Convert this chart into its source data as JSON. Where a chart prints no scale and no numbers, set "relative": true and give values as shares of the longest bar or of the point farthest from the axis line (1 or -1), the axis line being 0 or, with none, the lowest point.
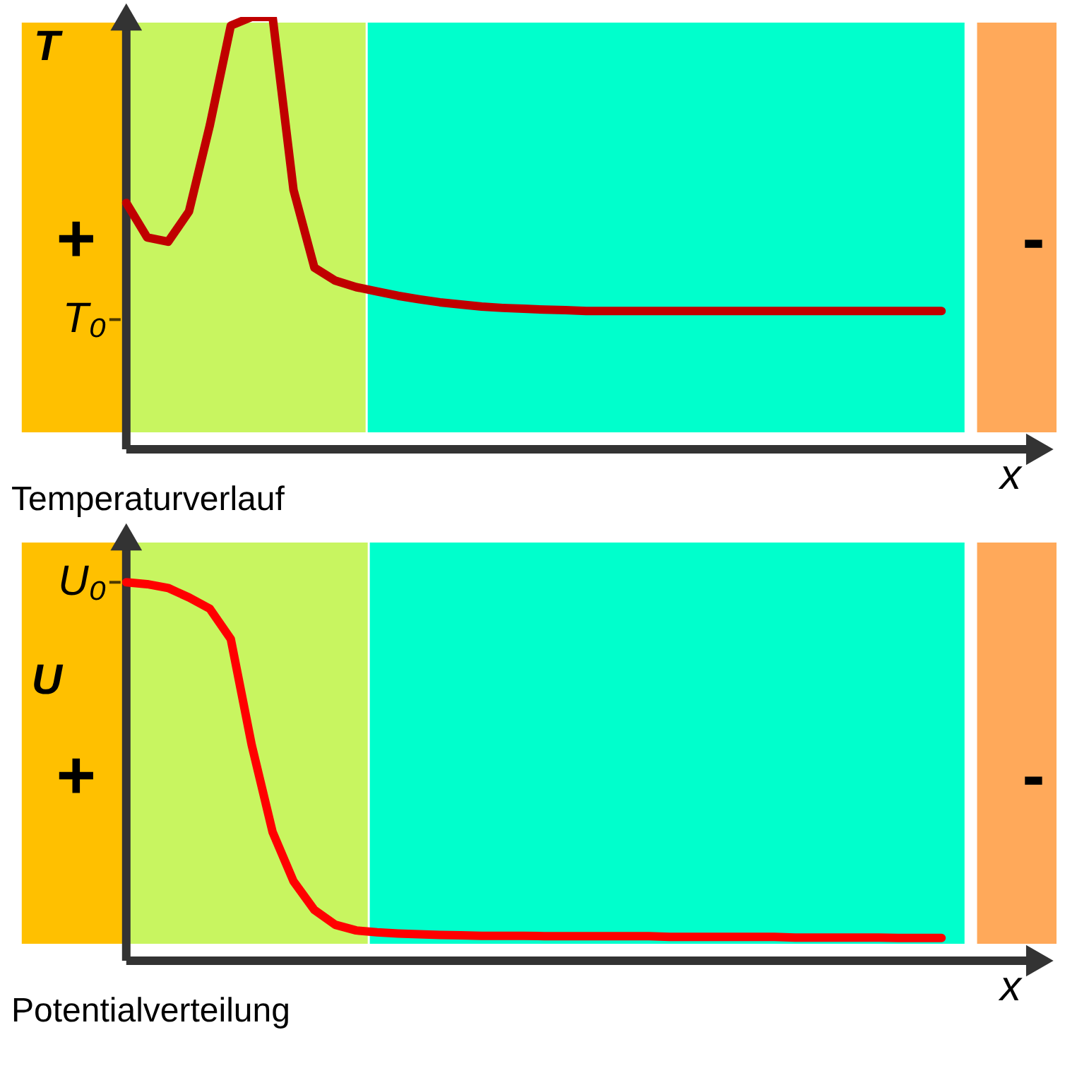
{
  "chart_data": [
    {
      "type": "line",
      "relative": true,
      "title": "Temperaturverlauf",
      "xlabel": "x",
      "ylabel": "T",
      "line_style": "solid",
      "categories": [
        null,
        null,
        null,
        null,
        null,
        null,
        null,
        null,
        null,
        null,
        null,
        null,
        null,
        null,
        null,
        null,
        null,
        null,
        null,
        null,
        null,
        null,
        null,
        null,
        null,
        null,
        null,
        null,
        null,
        null,
        null,
        null,
        null,
        null,
        null,
        null,
        null,
        null,
        null,
        null
      ],
      "series": [
        {
          "color": "#c00000",
          "values": [
            0.57,
            0.49,
            0.48,
            0.55,
            0.75,
            0.98,
            1.0,
            1.0,
            0.6,
            0.42,
            0.39,
            0.375,
            0.365,
            0.355,
            0.347,
            0.34,
            0.335,
            0.33,
            0.327,
            0.325,
            0.323,
            0.322,
            0.32,
            0.32,
            0.32,
            0.32,
            0.32,
            0.32,
            0.32,
            0.32,
            0.32,
            0.32,
            0.32,
            0.32,
            0.32,
            0.32,
            0.32,
            0.32,
            0.32,
            0.32
          ]
        }
      ],
      "annotations": [
        "+",
        "-",
        "T₀"
      ]
    },
    {
      "type": "line",
      "relative": true,
      "title": "Potentialverteilung",
      "xlabel": "x",
      "ylabel": "U",
      "line_style": "solid",
      "categories": [
        null,
        null,
        null,
        null,
        null,
        null,
        null,
        null,
        null,
        null,
        null,
        null,
        null,
        null,
        null,
        null,
        null,
        null,
        null,
        null,
        null,
        null,
        null,
        null,
        null,
        null,
        null,
        null,
        null,
        null,
        null,
        null,
        null,
        null,
        null,
        null,
        null,
        null,
        null,
        null
      ],
      "series": [
        {
          "color": "#ff0000",
          "values": [
            1.0,
            0.995,
            0.985,
            0.96,
            0.93,
            0.85,
            0.57,
            0.34,
            0.21,
            0.134,
            0.095,
            0.08,
            0.075,
            0.072,
            0.07,
            0.068,
            0.067,
            0.066,
            0.066,
            0.066,
            0.065,
            0.065,
            0.065,
            0.065,
            0.065,
            0.065,
            0.063,
            0.063,
            0.063,
            0.063,
            0.063,
            0.063,
            0.061,
            0.061,
            0.061,
            0.061,
            0.061,
            0.06,
            0.06,
            0.06
          ]
        }
      ],
      "annotations": [
        "+",
        "-",
        "U₀"
      ]
    }
  ]
}
